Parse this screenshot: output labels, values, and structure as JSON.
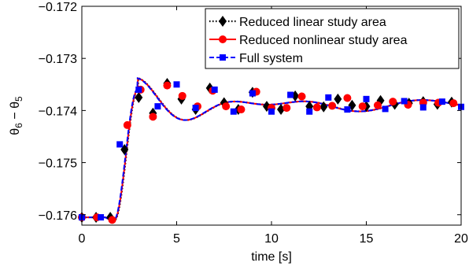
{
  "chart_data": {
    "type": "line",
    "xlabel": "time [s]",
    "ylabel": "θ6 − θ5",
    "ylabel_parts": {
      "a": "θ",
      "a_sub": "6",
      "minus": " − ",
      "b": "θ",
      "b_sub": "5"
    },
    "xlim": [
      0,
      20
    ],
    "ylim": [
      -0.1762,
      -0.172
    ],
    "x_ticks": [
      0,
      5,
      10,
      15,
      20
    ],
    "x_tick_labels": [
      "0",
      "5",
      "10",
      "15",
      "20"
    ],
    "y_ticks": [
      -0.176,
      -0.175,
      -0.174,
      -0.173,
      -0.172
    ],
    "y_tick_labels": [
      "−0.176",
      "−0.175",
      "−0.174",
      "−0.173",
      "−0.172"
    ],
    "grid": false,
    "legend_position": "top-right",
    "series": [
      {
        "name": "Reduced linear study area",
        "color": "#000000",
        "line_style": "dotted",
        "marker": "diamond",
        "x": [
          0,
          0.75,
          1.5,
          2.25,
          3.0,
          3.75,
          4.5,
          5.25,
          6.0,
          6.75,
          7.5,
          8.25,
          9.0,
          9.75,
          10.5,
          11.25,
          12.0,
          12.75,
          13.5,
          14.25,
          15.0,
          15.75,
          16.5,
          17.25,
          18.0,
          18.75,
          19.5
        ],
        "y": [
          -0.17605,
          -0.17605,
          -0.17605,
          -0.17475,
          -0.17375,
          -0.17405,
          -0.17348,
          -0.17378,
          -0.17398,
          -0.17357,
          -0.17385,
          -0.17398,
          -0.17365,
          -0.17392,
          -0.17398,
          -0.17372,
          -0.17392,
          -0.17393,
          -0.17378,
          -0.1739,
          -0.17392,
          -0.17381,
          -0.17388,
          -0.17386,
          -0.17383,
          -0.17388,
          -0.17384
        ]
      },
      {
        "name": "Reduced nonlinear study area",
        "color": "#ff0000",
        "line_style": "solid",
        "marker": "circle",
        "x": [
          0,
          0.8,
          1.6,
          2.4,
          3.1,
          3.75,
          4.5,
          5.3,
          6.1,
          6.9,
          7.6,
          8.4,
          9.2,
          10.0,
          10.8,
          11.6,
          12.4,
          13.2,
          14.0,
          14.8,
          15.6,
          16.4,
          17.2,
          18.0,
          18.8,
          19.6
        ],
        "y": [
          -0.17605,
          -0.17605,
          -0.1761,
          -0.17428,
          -0.1736,
          -0.17412,
          -0.17352,
          -0.17372,
          -0.17392,
          -0.17362,
          -0.17392,
          -0.17398,
          -0.17364,
          -0.17395,
          -0.17395,
          -0.17373,
          -0.17394,
          -0.17391,
          -0.17376,
          -0.17392,
          -0.1739,
          -0.17383,
          -0.17389,
          -0.17385,
          -0.17385,
          -0.17386
        ]
      },
      {
        "name": "Full system",
        "color": "#0000ff",
        "line_style": "dashed",
        "marker": "square",
        "x": [
          0,
          1.0,
          2.0,
          3.0,
          4.0,
          5.0,
          6.0,
          7.0,
          8.0,
          9.0,
          10.0,
          11.0,
          12.0,
          13.0,
          14.0,
          15.0,
          16.0,
          17.0,
          18.0,
          19.0,
          20.0
        ],
        "y": [
          -0.17605,
          -0.17605,
          -0.17465,
          -0.1736,
          -0.17392,
          -0.1735,
          -0.17395,
          -0.1736,
          -0.17402,
          -0.17367,
          -0.17402,
          -0.1737,
          -0.17402,
          -0.17375,
          -0.17398,
          -0.17378,
          -0.17397,
          -0.17382,
          -0.17394,
          -0.17383,
          -0.17393
        ]
      }
    ],
    "curve_model": {
      "t_step": 1.7,
      "rise_duration": 1.25,
      "y_initial": -0.17605,
      "y_final": -0.1739,
      "dip": -6e-05,
      "oscillations": [
        {
          "amp": 0.0004,
          "decay": 0.22,
          "omega": 5.15,
          "phase": 0.0
        },
        {
          "amp": 0.00012,
          "decay": 0.02,
          "omega": 3.3,
          "phase": 2.0
        }
      ]
    }
  }
}
